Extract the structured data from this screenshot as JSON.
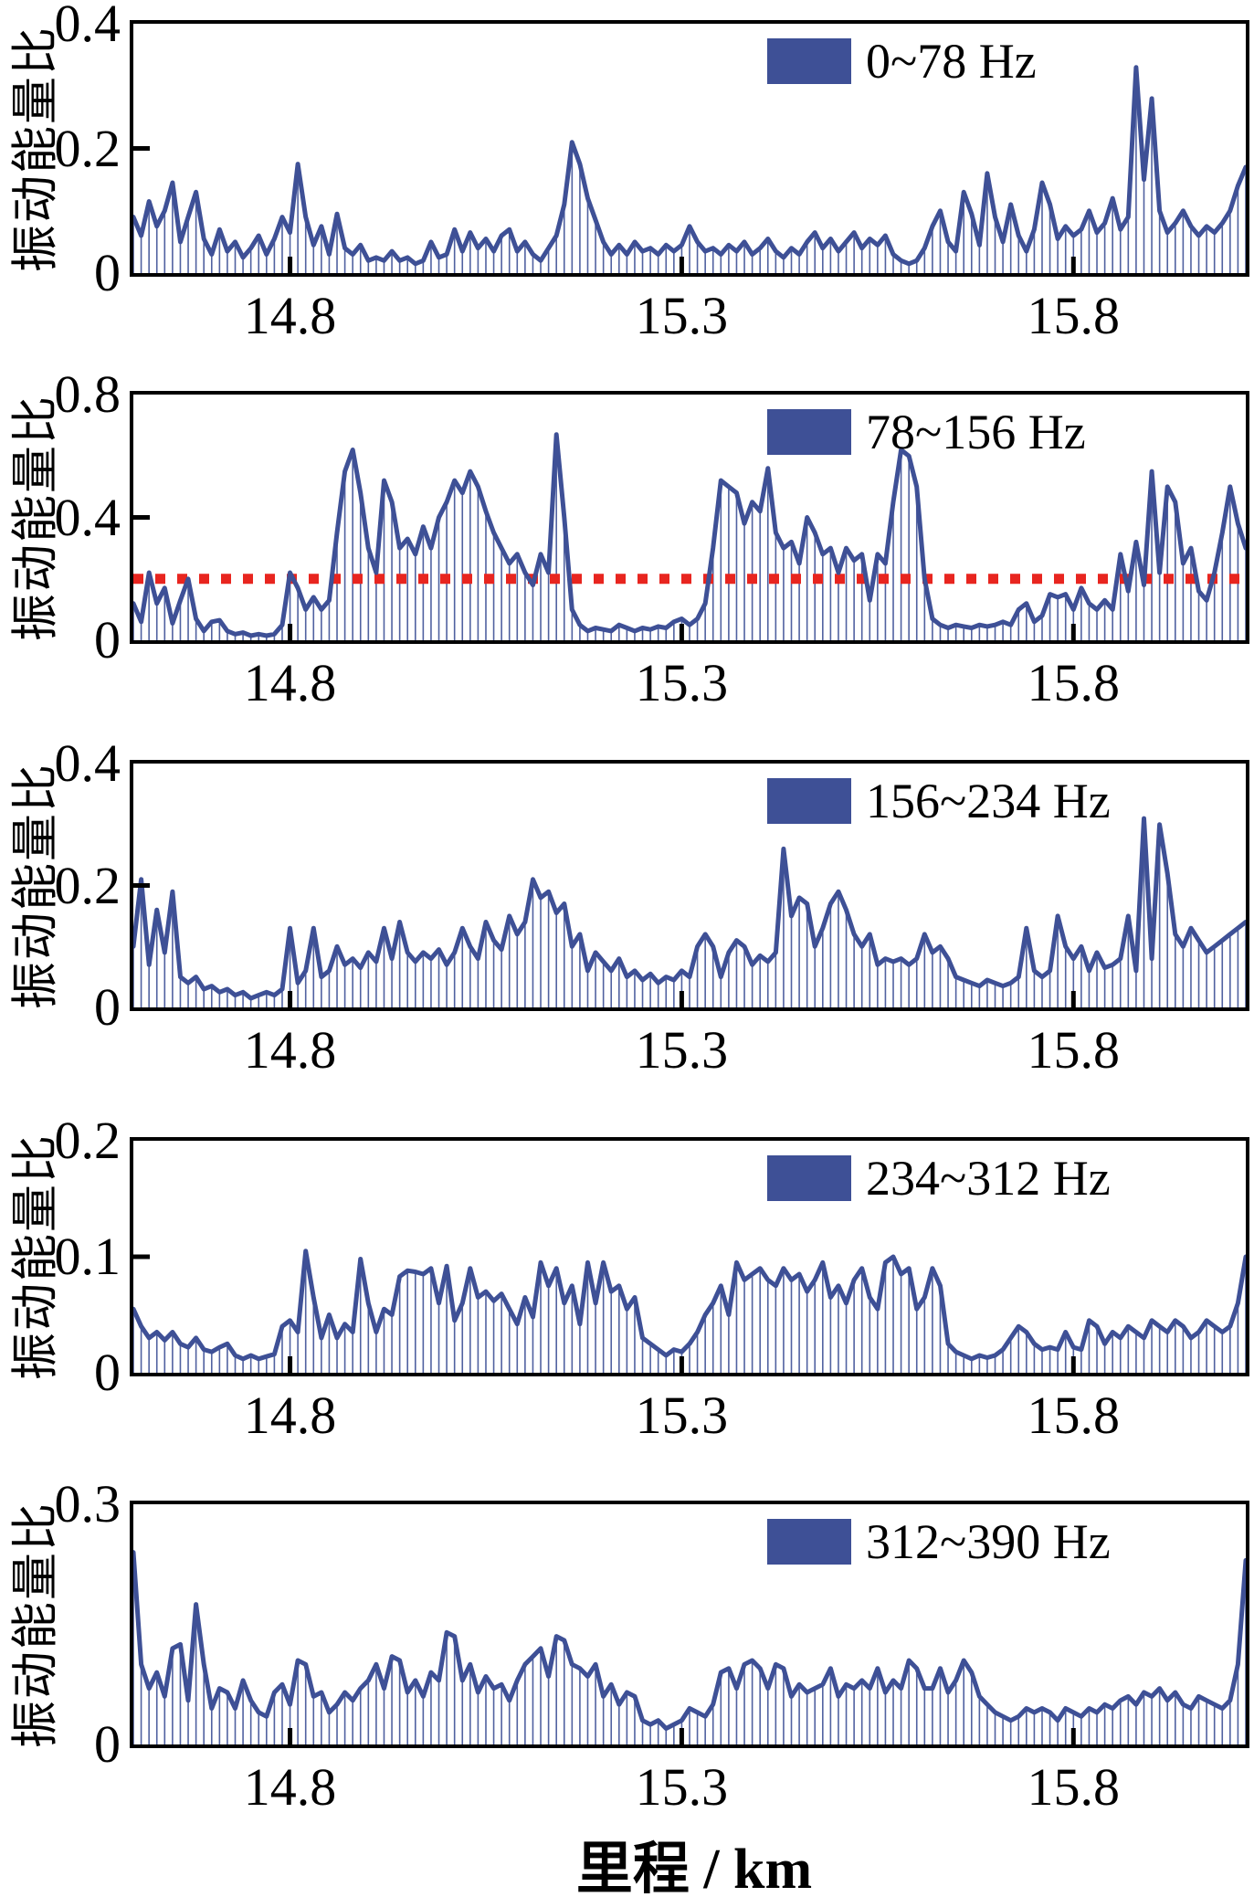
{
  "figure": {
    "x_axis_title": "里程 / km",
    "y_axis_label": "振动能量比",
    "x_ticks": [
      {
        "label": "14.8",
        "km": 14.8
      },
      {
        "label": "15.3",
        "km": 15.3
      },
      {
        "label": "15.8",
        "km": 15.8
      }
    ],
    "x_range_km": [
      14.6,
      16.02
    ],
    "legend_position": "top-right-inside",
    "grid": "off"
  },
  "colors": {
    "line": "#3e5096",
    "stem": "#3e5096",
    "legend_swatch": "#3e5096",
    "frame": "#000000",
    "text": "#000000",
    "threshold": "#e8251f",
    "background": "#ffffff"
  },
  "chart_data": [
    {
      "type": "line",
      "legend": "0~78 Hz",
      "xlabel": "里程 / km",
      "ylabel": "振动能量比",
      "ylim": [
        0,
        0.4
      ],
      "yticks": [
        {
          "value": 0,
          "label": "0"
        },
        {
          "value": 0.2,
          "label": "0.2"
        },
        {
          "value": 0.4,
          "label": "0.4"
        }
      ],
      "x_start_km": 14.6,
      "x_step_km": 0.01,
      "threshold_line": null,
      "values": [
        0.09,
        0.06,
        0.115,
        0.075,
        0.1,
        0.145,
        0.05,
        0.09,
        0.13,
        0.055,
        0.03,
        0.07,
        0.035,
        0.05,
        0.025,
        0.04,
        0.06,
        0.03,
        0.055,
        0.09,
        0.065,
        0.175,
        0.09,
        0.045,
        0.075,
        0.03,
        0.095,
        0.04,
        0.03,
        0.045,
        0.02,
        0.025,
        0.02,
        0.035,
        0.02,
        0.025,
        0.015,
        0.02,
        0.05,
        0.025,
        0.03,
        0.07,
        0.035,
        0.065,
        0.04,
        0.055,
        0.035,
        0.06,
        0.07,
        0.035,
        0.05,
        0.03,
        0.02,
        0.04,
        0.06,
        0.11,
        0.21,
        0.175,
        0.12,
        0.085,
        0.05,
        0.03,
        0.045,
        0.03,
        0.05,
        0.035,
        0.04,
        0.03,
        0.045,
        0.035,
        0.045,
        0.075,
        0.05,
        0.035,
        0.04,
        0.03,
        0.045,
        0.035,
        0.05,
        0.03,
        0.04,
        0.055,
        0.035,
        0.025,
        0.04,
        0.03,
        0.05,
        0.065,
        0.04,
        0.055,
        0.035,
        0.05,
        0.065,
        0.04,
        0.055,
        0.045,
        0.06,
        0.03,
        0.02,
        0.015,
        0.02,
        0.04,
        0.075,
        0.1,
        0.05,
        0.035,
        0.13,
        0.095,
        0.045,
        0.16,
        0.09,
        0.05,
        0.11,
        0.06,
        0.035,
        0.07,
        0.145,
        0.11,
        0.055,
        0.075,
        0.06,
        0.07,
        0.1,
        0.065,
        0.08,
        0.12,
        0.07,
        0.09,
        0.33,
        0.15,
        0.28,
        0.1,
        0.065,
        0.08,
        0.1,
        0.075,
        0.06,
        0.075,
        0.065,
        0.08,
        0.1,
        0.14,
        0.17
      ]
    },
    {
      "type": "line",
      "legend": "78~156 Hz",
      "xlabel": "里程 / km",
      "ylabel": "振动能量比",
      "ylim": [
        0,
        0.8
      ],
      "yticks": [
        {
          "value": 0,
          "label": "0"
        },
        {
          "value": 0.4,
          "label": "0.4"
        },
        {
          "value": 0.8,
          "label": "0.8"
        }
      ],
      "x_start_km": 14.6,
      "x_step_km": 0.01,
      "threshold_line": {
        "value": 0.2,
        "style": "dotted",
        "color": "#e8251f"
      },
      "values": [
        0.12,
        0.06,
        0.22,
        0.12,
        0.17,
        0.055,
        0.13,
        0.2,
        0.07,
        0.03,
        0.06,
        0.065,
        0.03,
        0.02,
        0.025,
        0.015,
        0.02,
        0.015,
        0.02,
        0.05,
        0.22,
        0.17,
        0.1,
        0.14,
        0.1,
        0.13,
        0.35,
        0.55,
        0.62,
        0.48,
        0.3,
        0.22,
        0.52,
        0.45,
        0.3,
        0.33,
        0.28,
        0.37,
        0.3,
        0.4,
        0.45,
        0.52,
        0.48,
        0.55,
        0.5,
        0.42,
        0.35,
        0.3,
        0.25,
        0.28,
        0.22,
        0.18,
        0.28,
        0.22,
        0.67,
        0.4,
        0.1,
        0.05,
        0.03,
        0.04,
        0.035,
        0.03,
        0.05,
        0.04,
        0.03,
        0.04,
        0.035,
        0.045,
        0.04,
        0.06,
        0.07,
        0.05,
        0.07,
        0.12,
        0.3,
        0.52,
        0.5,
        0.48,
        0.38,
        0.45,
        0.42,
        0.56,
        0.35,
        0.3,
        0.32,
        0.25,
        0.4,
        0.35,
        0.28,
        0.3,
        0.22,
        0.3,
        0.26,
        0.28,
        0.13,
        0.28,
        0.25,
        0.45,
        0.62,
        0.6,
        0.5,
        0.2,
        0.07,
        0.05,
        0.04,
        0.05,
        0.045,
        0.04,
        0.05,
        0.045,
        0.05,
        0.06,
        0.05,
        0.1,
        0.12,
        0.06,
        0.08,
        0.15,
        0.14,
        0.15,
        0.1,
        0.17,
        0.12,
        0.1,
        0.13,
        0.1,
        0.28,
        0.16,
        0.32,
        0.18,
        0.55,
        0.22,
        0.5,
        0.45,
        0.25,
        0.3,
        0.16,
        0.13,
        0.22,
        0.35,
        0.5,
        0.38,
        0.3
      ]
    },
    {
      "type": "line",
      "legend": "156~234 Hz",
      "xlabel": "里程 / km",
      "ylabel": "振动能量比",
      "ylim": [
        0,
        0.4
      ],
      "yticks": [
        {
          "value": 0,
          "label": "0"
        },
        {
          "value": 0.2,
          "label": "0.2"
        },
        {
          "value": 0.4,
          "label": "0.4"
        }
      ],
      "x_start_km": 14.6,
      "x_step_km": 0.01,
      "threshold_line": null,
      "values": [
        0.1,
        0.21,
        0.07,
        0.16,
        0.09,
        0.19,
        0.05,
        0.04,
        0.05,
        0.03,
        0.035,
        0.025,
        0.03,
        0.02,
        0.025,
        0.015,
        0.02,
        0.025,
        0.02,
        0.03,
        0.13,
        0.04,
        0.06,
        0.13,
        0.05,
        0.06,
        0.1,
        0.07,
        0.08,
        0.065,
        0.09,
        0.075,
        0.13,
        0.08,
        0.14,
        0.09,
        0.075,
        0.09,
        0.08,
        0.095,
        0.07,
        0.09,
        0.13,
        0.1,
        0.08,
        0.14,
        0.11,
        0.095,
        0.15,
        0.12,
        0.14,
        0.21,
        0.18,
        0.19,
        0.155,
        0.17,
        0.1,
        0.12,
        0.06,
        0.09,
        0.075,
        0.06,
        0.08,
        0.05,
        0.06,
        0.045,
        0.055,
        0.04,
        0.05,
        0.045,
        0.06,
        0.05,
        0.1,
        0.12,
        0.1,
        0.05,
        0.09,
        0.11,
        0.1,
        0.07,
        0.085,
        0.075,
        0.09,
        0.26,
        0.15,
        0.18,
        0.17,
        0.1,
        0.13,
        0.17,
        0.19,
        0.16,
        0.12,
        0.1,
        0.12,
        0.07,
        0.08,
        0.075,
        0.08,
        0.07,
        0.08,
        0.12,
        0.09,
        0.1,
        0.08,
        0.05,
        0.045,
        0.04,
        0.035,
        0.045,
        0.04,
        0.035,
        0.04,
        0.05,
        0.13,
        0.06,
        0.05,
        0.06,
        0.15,
        0.1,
        0.08,
        0.1,
        0.06,
        0.09,
        0.065,
        0.07,
        0.08,
        0.15,
        0.06,
        0.31,
        0.08,
        0.3,
        0.22,
        0.12,
        0.1,
        0.13,
        0.11,
        0.09,
        0.1,
        0.11,
        0.12,
        0.13,
        0.14
      ]
    },
    {
      "type": "line",
      "legend": "234~312 Hz",
      "xlabel": "里程 / km",
      "ylabel": "振动能量比",
      "ylim": [
        0,
        0.2
      ],
      "yticks": [
        {
          "value": 0,
          "label": "0"
        },
        {
          "value": 0.1,
          "label": "0.1"
        },
        {
          "value": 0.2,
          "label": "0.2"
        }
      ],
      "x_start_km": 14.6,
      "x_step_km": 0.01,
      "threshold_line": null,
      "values": [
        0.055,
        0.04,
        0.03,
        0.035,
        0.028,
        0.035,
        0.025,
        0.022,
        0.03,
        0.02,
        0.018,
        0.022,
        0.025,
        0.015,
        0.012,
        0.015,
        0.012,
        0.014,
        0.016,
        0.04,
        0.045,
        0.035,
        0.105,
        0.065,
        0.03,
        0.05,
        0.03,
        0.042,
        0.035,
        0.098,
        0.06,
        0.035,
        0.055,
        0.05,
        0.083,
        0.088,
        0.087,
        0.085,
        0.09,
        0.06,
        0.092,
        0.045,
        0.06,
        0.09,
        0.065,
        0.07,
        0.062,
        0.068,
        0.055,
        0.042,
        0.065,
        0.048,
        0.095,
        0.075,
        0.09,
        0.06,
        0.075,
        0.042,
        0.095,
        0.06,
        0.095,
        0.07,
        0.075,
        0.055,
        0.065,
        0.03,
        0.025,
        0.02,
        0.015,
        0.02,
        0.018,
        0.025,
        0.035,
        0.05,
        0.06,
        0.075,
        0.05,
        0.095,
        0.08,
        0.085,
        0.09,
        0.08,
        0.075,
        0.09,
        0.08,
        0.085,
        0.07,
        0.08,
        0.095,
        0.065,
        0.075,
        0.06,
        0.08,
        0.09,
        0.065,
        0.055,
        0.095,
        0.1,
        0.085,
        0.09,
        0.055,
        0.065,
        0.09,
        0.075,
        0.025,
        0.018,
        0.015,
        0.012,
        0.015,
        0.013,
        0.015,
        0.02,
        0.03,
        0.04,
        0.035,
        0.025,
        0.02,
        0.022,
        0.02,
        0.035,
        0.022,
        0.02,
        0.045,
        0.04,
        0.025,
        0.035,
        0.03,
        0.04,
        0.035,
        0.03,
        0.045,
        0.04,
        0.035,
        0.045,
        0.04,
        0.03,
        0.035,
        0.045,
        0.04,
        0.035,
        0.04,
        0.06,
        0.1
      ]
    },
    {
      "type": "line",
      "legend": "312~390 Hz",
      "xlabel": "里程 / km",
      "ylabel": "振动能量比",
      "ylim": [
        0,
        0.3
      ],
      "yticks": [
        {
          "value": 0,
          "label": "0"
        },
        {
          "value": 0.3,
          "label": "0.3"
        }
      ],
      "x_start_km": 14.6,
      "x_step_km": 0.01,
      "threshold_line": null,
      "values": [
        0.24,
        0.1,
        0.07,
        0.09,
        0.06,
        0.12,
        0.125,
        0.055,
        0.175,
        0.1,
        0.045,
        0.07,
        0.065,
        0.045,
        0.08,
        0.055,
        0.04,
        0.035,
        0.065,
        0.075,
        0.05,
        0.105,
        0.1,
        0.06,
        0.065,
        0.04,
        0.05,
        0.065,
        0.055,
        0.07,
        0.08,
        0.1,
        0.07,
        0.11,
        0.105,
        0.065,
        0.08,
        0.06,
        0.09,
        0.08,
        0.14,
        0.135,
        0.08,
        0.1,
        0.065,
        0.085,
        0.07,
        0.075,
        0.055,
        0.08,
        0.1,
        0.11,
        0.12,
        0.085,
        0.135,
        0.13,
        0.1,
        0.095,
        0.085,
        0.1,
        0.06,
        0.075,
        0.05,
        0.065,
        0.06,
        0.03,
        0.025,
        0.03,
        0.02,
        0.025,
        0.03,
        0.045,
        0.04,
        0.035,
        0.05,
        0.09,
        0.095,
        0.07,
        0.1,
        0.105,
        0.095,
        0.07,
        0.1,
        0.095,
        0.06,
        0.075,
        0.065,
        0.07,
        0.075,
        0.095,
        0.06,
        0.075,
        0.07,
        0.08,
        0.07,
        0.095,
        0.065,
        0.08,
        0.07,
        0.105,
        0.095,
        0.07,
        0.07,
        0.095,
        0.065,
        0.08,
        0.105,
        0.09,
        0.06,
        0.05,
        0.04,
        0.035,
        0.03,
        0.035,
        0.045,
        0.04,
        0.045,
        0.04,
        0.03,
        0.045,
        0.04,
        0.035,
        0.045,
        0.04,
        0.05,
        0.045,
        0.055,
        0.06,
        0.05,
        0.065,
        0.06,
        0.07,
        0.055,
        0.065,
        0.05,
        0.045,
        0.06,
        0.055,
        0.05,
        0.045,
        0.055,
        0.1,
        0.23
      ]
    }
  ]
}
